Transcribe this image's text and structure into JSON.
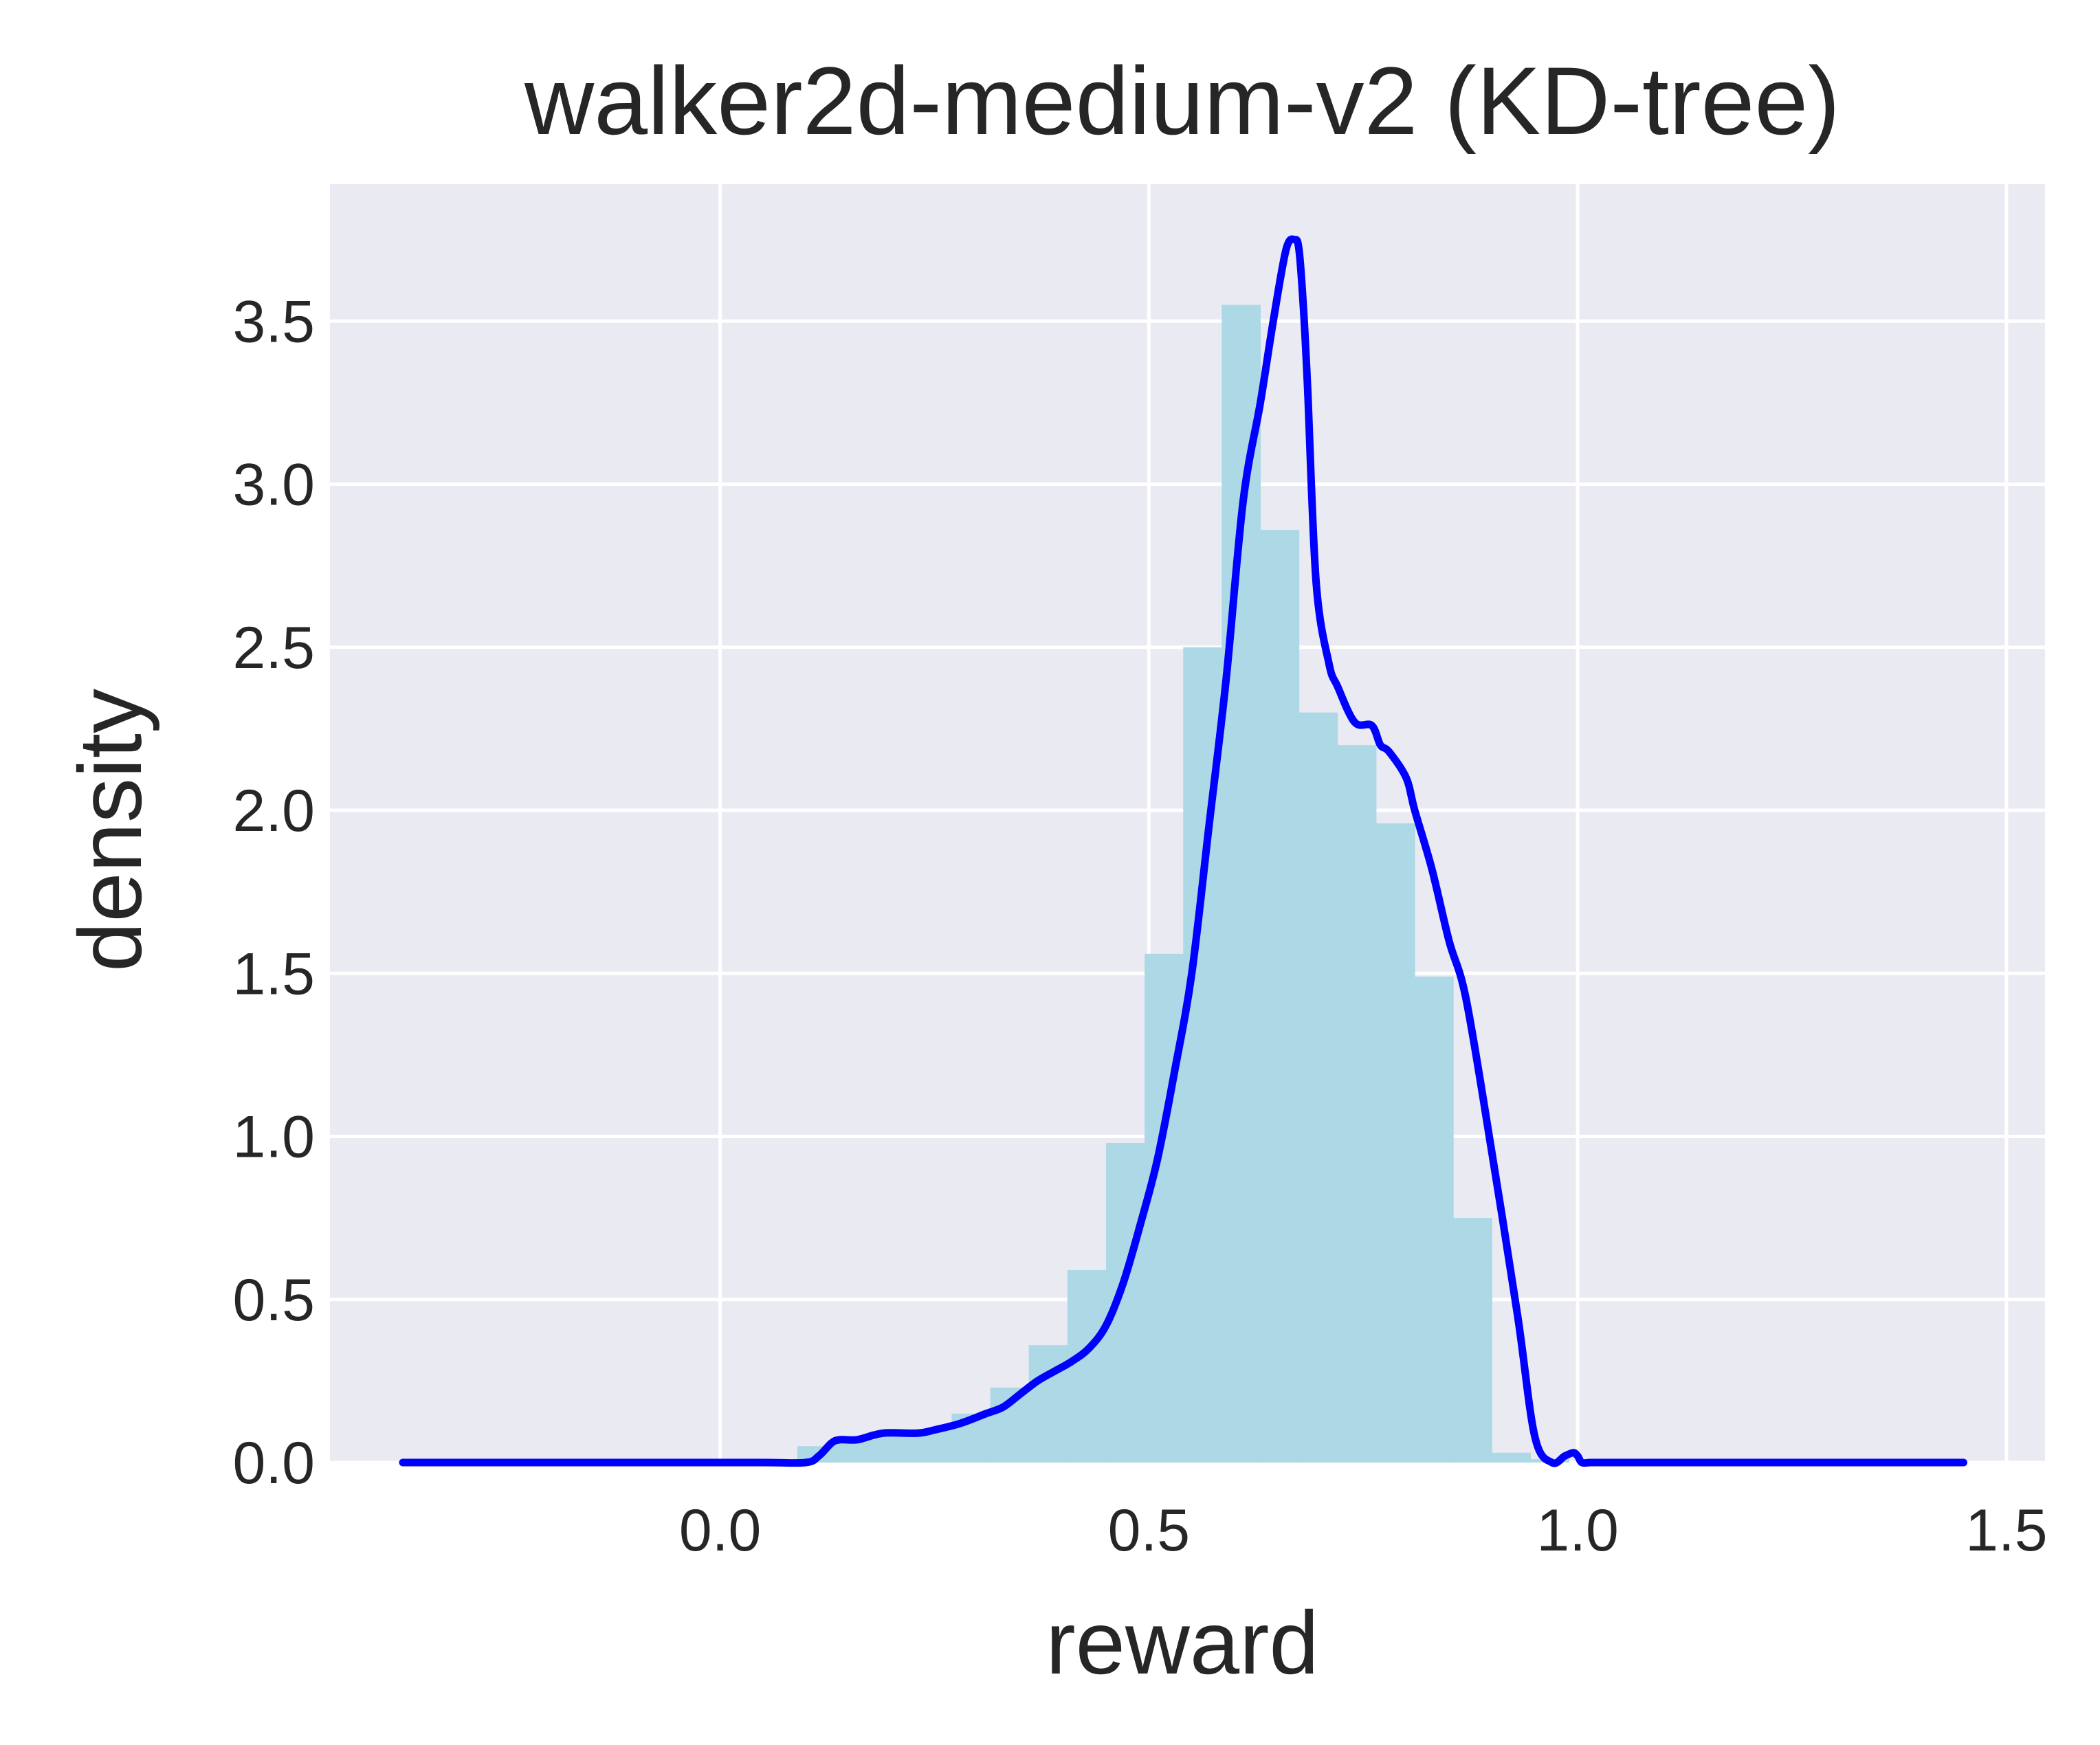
{
  "chart_data": {
    "type": "histogram",
    "title": "walker2d-medium-v2 (KD-tree)",
    "xlabel": "reward",
    "ylabel": "density",
    "xlim": [
      -0.455,
      1.545
    ],
    "ylim": [
      0,
      3.92
    ],
    "grid": true,
    "legend": "none",
    "colors": {
      "background": "#eaeaf2",
      "grid": "#ffffff",
      "histogram": "#add8e6",
      "kde": "#0000ff"
    },
    "x_ticks": [
      {
        "value": 0.0,
        "label": "0.0"
      },
      {
        "value": 0.5,
        "label": "0.5"
      },
      {
        "value": 1.0,
        "label": "1.0"
      },
      {
        "value": 1.5,
        "label": "1.5"
      }
    ],
    "y_ticks": [
      {
        "value": 0.0,
        "label": "0.0"
      },
      {
        "value": 0.5,
        "label": "0.5"
      },
      {
        "value": 1.0,
        "label": "1.0"
      },
      {
        "value": 1.5,
        "label": "1.5"
      },
      {
        "value": 2.0,
        "label": "2.0"
      },
      {
        "value": 2.5,
        "label": "2.5"
      },
      {
        "value": 3.0,
        "label": "3.0"
      },
      {
        "value": 3.5,
        "label": "3.5"
      }
    ],
    "histogram": {
      "bin_edges": [
        0.09,
        0.135,
        0.18,
        0.225,
        0.27,
        0.315,
        0.36,
        0.405,
        0.45,
        0.495,
        0.54,
        0.585,
        0.63,
        0.675,
        0.72,
        0.765,
        0.81,
        0.855,
        0.9,
        0.945,
        0.99
      ],
      "values": [
        0.05,
        0.07,
        0.08,
        0.1,
        0.15,
        0.23,
        0.36,
        0.59,
        0.98,
        1.56,
        2.5,
        3.55,
        2.86,
        2.3,
        2.2,
        1.96,
        1.49,
        0.75,
        0.03,
        0.01
      ]
    },
    "kde": {
      "x": [
        -0.37,
        -0.2,
        -0.05,
        0.05,
        0.1,
        0.115,
        0.13,
        0.14,
        0.16,
        0.19,
        0.23,
        0.25,
        0.28,
        0.31,
        0.33,
        0.35,
        0.37,
        0.39,
        0.41,
        0.43,
        0.45,
        0.47,
        0.49,
        0.51,
        0.53,
        0.55,
        0.57,
        0.59,
        0.61,
        0.63,
        0.645,
        0.66,
        0.67,
        0.675,
        0.68,
        0.685,
        0.695,
        0.71,
        0.72,
        0.74,
        0.76,
        0.77,
        0.78,
        0.8,
        0.81,
        0.83,
        0.85,
        0.87,
        0.9,
        0.93,
        0.95,
        0.97,
        0.985,
        0.995,
        1.0,
        1.005,
        1.015,
        1.03,
        1.1,
        1.3,
        1.45
      ],
      "y": [
        0.0,
        0.0,
        0.0,
        0.0,
        0.0,
        0.02,
        0.06,
        0.07,
        0.07,
        0.09,
        0.09,
        0.1,
        0.12,
        0.15,
        0.17,
        0.21,
        0.25,
        0.28,
        0.31,
        0.35,
        0.42,
        0.55,
        0.73,
        0.93,
        1.2,
        1.5,
        1.95,
        2.4,
        2.95,
        3.25,
        3.5,
        3.72,
        3.75,
        3.72,
        3.55,
        3.3,
        2.7,
        2.45,
        2.38,
        2.27,
        2.26,
        2.2,
        2.18,
        2.1,
        2.0,
        1.82,
        1.6,
        1.42,
        0.95,
        0.45,
        0.08,
        0.0,
        0.02,
        0.03,
        0.02,
        0.0,
        0.0,
        0.0,
        0.0,
        0.0,
        0.0
      ]
    }
  }
}
